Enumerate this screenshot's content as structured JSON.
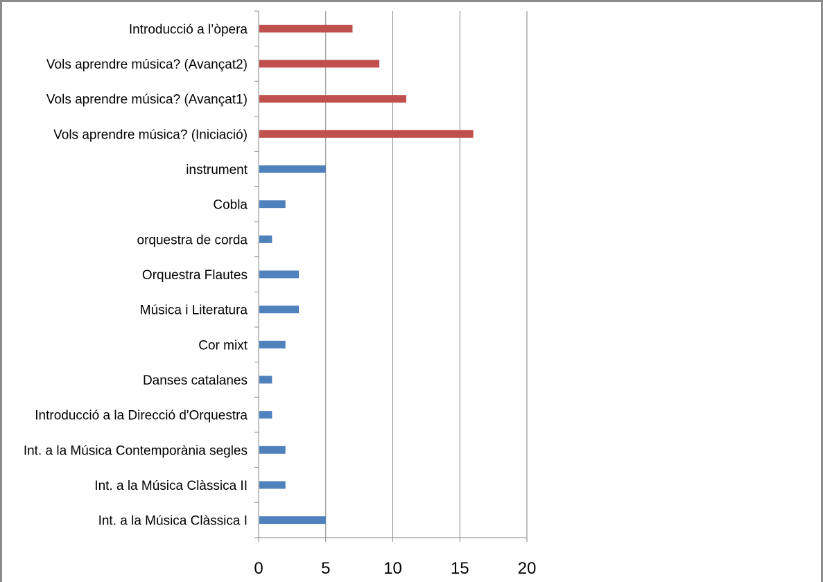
{
  "chart_data": {
    "type": "bar",
    "orientation": "horizontal",
    "title": "",
    "xlabel": "",
    "ylabel": "",
    "xlim": [
      0,
      20
    ],
    "x_ticks": [
      "0",
      "5",
      "10",
      "15",
      "20"
    ],
    "grid": "vertical",
    "legend": "none",
    "categories": [
      "Introducció a l’òpera",
      "Vols aprendre música? (Avançat2)",
      "Vols aprendre música? (Avançat1)",
      "Vols aprendre música? (Iniciació)",
      "instrument",
      "Cobla",
      "orquestra de corda",
      "Orquestra Flautes",
      "Música i Literatura",
      "Cor mixt",
      "Danses catalanes",
      "Introducció a la Direcció d'Orquestra",
      "Int. a la Música Contemporània  segles",
      "Int. a la Música Clàssica II",
      "Int. a la Música Clàssica I"
    ],
    "values": [
      7,
      9,
      11,
      16,
      5,
      2,
      1,
      3,
      3,
      2,
      1,
      1,
      2,
      2,
      5
    ],
    "bar_colors": [
      "#c0504d",
      "#c0504d",
      "#c0504d",
      "#c0504d",
      "#4f81bd",
      "#4f81bd",
      "#4f81bd",
      "#4f81bd",
      "#4f81bd",
      "#4f81bd",
      "#4f81bd",
      "#4f81bd",
      "#4f81bd",
      "#4f81bd",
      "#4f81bd"
    ],
    "grid_color": "#868686",
    "axis_color": "#868686"
  }
}
